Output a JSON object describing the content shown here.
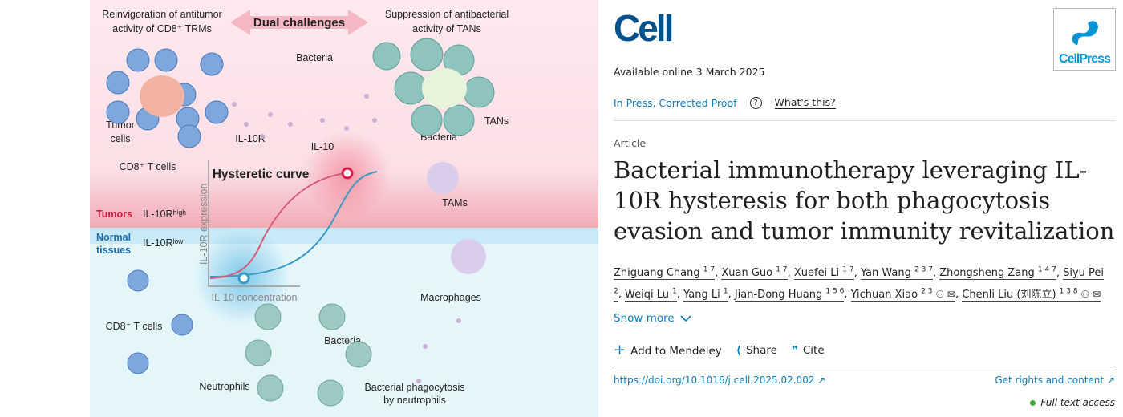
{
  "graphical_abstract": {
    "top_left": [
      "Reinvigoration of antitumor",
      "activity of CD8⁺ TRMs"
    ],
    "top_center": "Dual challenges",
    "top_right": [
      "Suppression of antibacterial",
      "activity of TANs"
    ],
    "bacteria_top": "Bacteria",
    "tumor_cells": [
      "Tumor",
      "cells"
    ],
    "il10r": "IL-10R",
    "il10": "IL-10",
    "cd8_top": "CD8⁺ T cells",
    "bacteria_tan": "Bacteria",
    "tans": "TANs",
    "tams": "TAMs",
    "hysteretic": "Hysteretic curve",
    "y_axis": "IL-10R expression",
    "x_axis": "IL-10 concentration",
    "tumors": "Tumors",
    "il10r_high": "IL-10Rʰⁱᵍʰ",
    "normal": [
      "Normal",
      "tissues"
    ],
    "il10r_low": "IL-10Rˡᵒʷ",
    "macrophages": "Macrophages",
    "cd8_bottom": "CD8⁺ T cells",
    "bacteria_bottom": "Bacteria",
    "neutrophils": "Neutrophils",
    "phago": [
      "Bacterial phagocytosis",
      "by neutrophils"
    ],
    "colors": {
      "pink": "#fde8ec",
      "blue": "#e3f5fa",
      "red": "#d6204a",
      "teal": "#3a9cc4"
    }
  },
  "journal": {
    "logo": "Cell",
    "publisher": "CellPress"
  },
  "available": "Available online 3 March 2025",
  "status": "In Press, Corrected Proof",
  "help_icon": "question-circle-icon",
  "whats_this": "What's this?",
  "article_type": "Article",
  "title": "Bacterial immunotherapy leveraging IL-10R hysteresis for both phagocytosis evasion and tumor immunity revitalization",
  "authors": [
    {
      "name": "Zhiguang Chang",
      "sup": "1 7"
    },
    {
      "name": "Xuan Guo",
      "sup": "1 7"
    },
    {
      "name": "Xuefei Li",
      "sup": "1 7"
    },
    {
      "name": "Yan Wang",
      "sup": "2 3 7"
    },
    {
      "name": "Zhongsheng Zang",
      "sup": "1 4 7"
    },
    {
      "name": "Siyu Pei",
      "sup": "2"
    },
    {
      "name": "Weiqi Lu",
      "sup": "1"
    },
    {
      "name": "Yang Li",
      "sup": "1"
    },
    {
      "name": "Jian-Dong Huang",
      "sup": "1 5 6"
    },
    {
      "name": "Yichuan Xiao",
      "sup": "2 3"
    },
    {
      "name": "Chenli Liu (刘陈立)",
      "sup": "1 3 8"
    }
  ],
  "show_more": "Show more",
  "actions": {
    "mendeley": "Add to Mendeley",
    "share": "Share",
    "cite": "Cite"
  },
  "doi": "https://doi.org/10.1016/j.cell.2025.02.002",
  "rights": "Get rights and content",
  "access": "Full text access"
}
